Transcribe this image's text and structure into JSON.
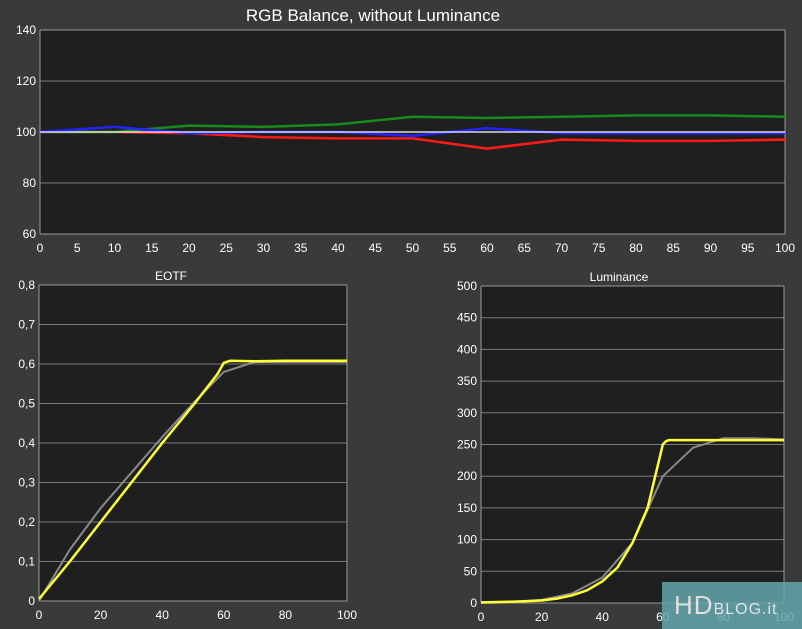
{
  "chart_data": [
    {
      "type": "line",
      "title": "RGB Balance, without Luminance",
      "xlabel": "",
      "ylabel": "",
      "xlim": [
        0,
        100
      ],
      "ylim": [
        60,
        140
      ],
      "x_ticks": [
        0,
        5,
        10,
        15,
        20,
        25,
        30,
        35,
        40,
        45,
        50,
        55,
        60,
        65,
        70,
        75,
        80,
        85,
        90,
        95,
        100
      ],
      "y_ticks": [
        60,
        80,
        100,
        120,
        140
      ],
      "grid": true,
      "series": [
        {
          "color": "#ff1a1a",
          "x": [
            0,
            10,
            20,
            30,
            40,
            50,
            60,
            70,
            80,
            90,
            100
          ],
          "y": [
            100,
            100,
            99.5,
            98,
            97.5,
            97.5,
            93.5,
            97,
            96.5,
            96.5,
            97
          ]
        },
        {
          "color": "#1a8a1a",
          "x": [
            0,
            10,
            20,
            30,
            40,
            50,
            60,
            70,
            80,
            90,
            100
          ],
          "y": [
            100,
            100,
            102.5,
            102,
            103,
            106,
            105.5,
            106,
            106.5,
            106.5,
            106
          ]
        },
        {
          "color": "#2222ff",
          "x": [
            0,
            10,
            20,
            30,
            40,
            50,
            60,
            70,
            80,
            90,
            100
          ],
          "y": [
            100,
            102,
            99.5,
            100,
            100,
            98.5,
            101.5,
            99.5,
            99.5,
            99.5,
            99.5
          ]
        },
        {
          "color": "#ffffff",
          "x": [
            0,
            100
          ],
          "y": [
            100,
            100
          ]
        }
      ]
    },
    {
      "type": "line",
      "title": "EOTF",
      "xlabel": "",
      "ylabel": "",
      "xlim": [
        0,
        100
      ],
      "ylim": [
        0,
        0.8
      ],
      "x_ticks": [
        "0",
        "20",
        "40",
        "60",
        "80",
        "100"
      ],
      "y_ticks": [
        "0",
        "0,1",
        "0,2",
        "0,3",
        "0,4",
        "0,5",
        "0,6",
        "0,7",
        "0,8"
      ],
      "grid": true,
      "series": [
        {
          "color": "#8a8a8a",
          "x": [
            0,
            10,
            20,
            30,
            40,
            50,
            60,
            70,
            80,
            90,
            100
          ],
          "y": [
            0,
            0.13,
            0.235,
            0.325,
            0.415,
            0.5,
            0.58,
            0.605,
            0.605,
            0.605,
            0.605
          ]
        },
        {
          "color": "#ffff33",
          "x": [
            0,
            10,
            20,
            30,
            40,
            50,
            58,
            60,
            62,
            70,
            80,
            90,
            100
          ],
          "y": [
            0.005,
            0.1,
            0.2,
            0.3,
            0.4,
            0.495,
            0.575,
            0.603,
            0.608,
            0.607,
            0.608,
            0.608,
            0.608
          ]
        }
      ]
    },
    {
      "type": "line",
      "title": "Luminance",
      "xlabel": "",
      "ylabel": "",
      "xlim": [
        0,
        100
      ],
      "ylim": [
        0,
        500
      ],
      "x_ticks": [
        "0",
        "20",
        "40",
        "60",
        "80",
        "100"
      ],
      "y_ticks": [
        "0",
        "50",
        "100",
        "150",
        "200",
        "250",
        "300",
        "350",
        "400",
        "450",
        "500"
      ],
      "grid": true,
      "series": [
        {
          "color": "#8a8a8a",
          "x": [
            0,
            10,
            20,
            30,
            40,
            50,
            60,
            70,
            80,
            90,
            100
          ],
          "y": [
            0,
            1,
            5,
            15,
            40,
            95,
            200,
            245,
            260,
            260,
            258
          ]
        },
        {
          "color": "#ffff33",
          "x": [
            0,
            10,
            20,
            25,
            30,
            35,
            40,
            45,
            50,
            55,
            58,
            60,
            61,
            62,
            70,
            80,
            90,
            100
          ],
          "y": [
            1,
            2,
            4,
            7,
            12,
            20,
            34,
            56,
            95,
            150,
            210,
            250,
            255,
            257,
            257,
            257,
            257,
            257
          ]
        }
      ]
    }
  ],
  "watermark": {
    "big": "HD",
    "small": "BLOG.it"
  }
}
